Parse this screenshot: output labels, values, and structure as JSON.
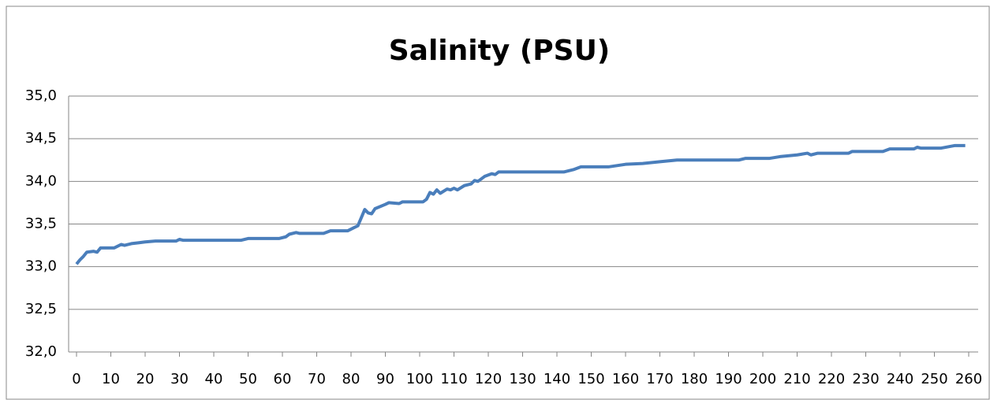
{
  "chart_data": {
    "type": "line",
    "title": "Salinity (PSU)",
    "x": [
      0,
      1,
      2,
      3,
      5,
      6,
      7,
      11,
      13,
      14,
      16,
      18,
      20,
      23,
      29,
      30,
      31,
      48,
      50,
      59,
      61,
      62,
      64,
      65,
      72,
      74,
      79,
      81,
      82,
      84,
      85,
      86,
      87,
      90,
      91,
      94,
      95,
      101,
      102,
      103,
      104,
      105,
      106,
      108,
      109,
      110,
      111,
      113,
      115,
      116,
      117,
      119,
      121,
      122,
      123,
      142,
      145,
      147,
      155,
      160,
      165,
      170,
      175,
      193,
      195,
      202,
      205,
      210,
      213,
      214,
      216,
      225,
      226,
      235,
      237,
      244,
      245,
      246,
      252,
      256,
      259
    ],
    "series": [
      {
        "name": "Salinity",
        "color": "#4a7ebb",
        "values": [
          33.03,
          33.08,
          33.12,
          33.17,
          33.18,
          33.17,
          33.22,
          33.22,
          33.26,
          33.25,
          33.27,
          33.28,
          33.29,
          33.3,
          33.3,
          33.32,
          33.31,
          33.31,
          33.33,
          33.33,
          33.35,
          33.38,
          33.4,
          33.39,
          33.39,
          33.42,
          33.42,
          33.46,
          33.48,
          33.67,
          33.63,
          33.62,
          33.68,
          33.73,
          33.75,
          33.74,
          33.76,
          33.76,
          33.79,
          33.87,
          33.85,
          33.9,
          33.86,
          33.91,
          33.9,
          33.92,
          33.9,
          33.95,
          33.97,
          34.01,
          34.0,
          34.06,
          34.09,
          34.08,
          34.11,
          34.11,
          34.14,
          34.17,
          34.17,
          34.2,
          34.21,
          34.23,
          34.25,
          34.25,
          34.27,
          34.27,
          34.29,
          34.31,
          34.33,
          34.31,
          34.33,
          34.33,
          34.35,
          34.35,
          34.38,
          34.38,
          34.4,
          34.39,
          34.39,
          34.42,
          34.42
        ]
      }
    ],
    "xlim": [
      0,
      260
    ],
    "xticks": [
      0,
      10,
      20,
      30,
      40,
      50,
      60,
      70,
      80,
      90,
      100,
      110,
      120,
      130,
      140,
      150,
      160,
      170,
      180,
      190,
      200,
      210,
      220,
      230,
      240,
      250,
      260
    ],
    "ylim": [
      32.0,
      35.0
    ],
    "yticks": [
      {
        "value": 32.0,
        "label": "32,0"
      },
      {
        "value": 32.5,
        "label": "32,5"
      },
      {
        "value": 33.0,
        "label": "33,0"
      },
      {
        "value": 33.5,
        "label": "33,5"
      },
      {
        "value": 34.0,
        "label": "34,0"
      },
      {
        "value": 34.5,
        "label": "34,5"
      },
      {
        "value": 35.0,
        "label": "35,0"
      }
    ],
    "grid": true
  }
}
